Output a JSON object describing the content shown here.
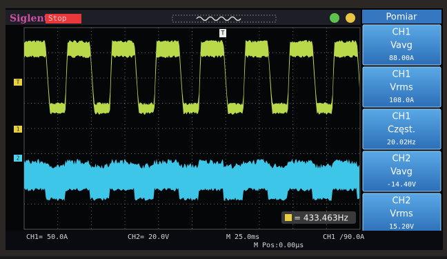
{
  "header": {
    "brand": "Siglent",
    "status": "Stop",
    "trigger_marker": "T"
  },
  "channel_markers": [
    "T",
    "1",
    "2"
  ],
  "measure_panel": {
    "title": "Pomiar",
    "items": [
      {
        "channel": "CH1",
        "name": "Vavg",
        "value": "88.00A"
      },
      {
        "channel": "CH1",
        "name": "Vrms",
        "value": "108.0A"
      },
      {
        "channel": "CH1",
        "name": "Częst.",
        "value": "20.02Hz"
      },
      {
        "channel": "CH2",
        "name": "Vavg",
        "value": "-14.40V"
      },
      {
        "channel": "CH2",
        "name": "Vrms",
        "value": "15.20V"
      }
    ]
  },
  "counter": {
    "value": "= 433.463Hz"
  },
  "footer": {
    "ch1_scale": "CH1= 50.0A",
    "ch2_scale": "CH2= 20.0V",
    "timebase": "M 25.0ms",
    "trigger": "CH1 /90.0A",
    "position": "M Pos:0.00μs"
  }
}
